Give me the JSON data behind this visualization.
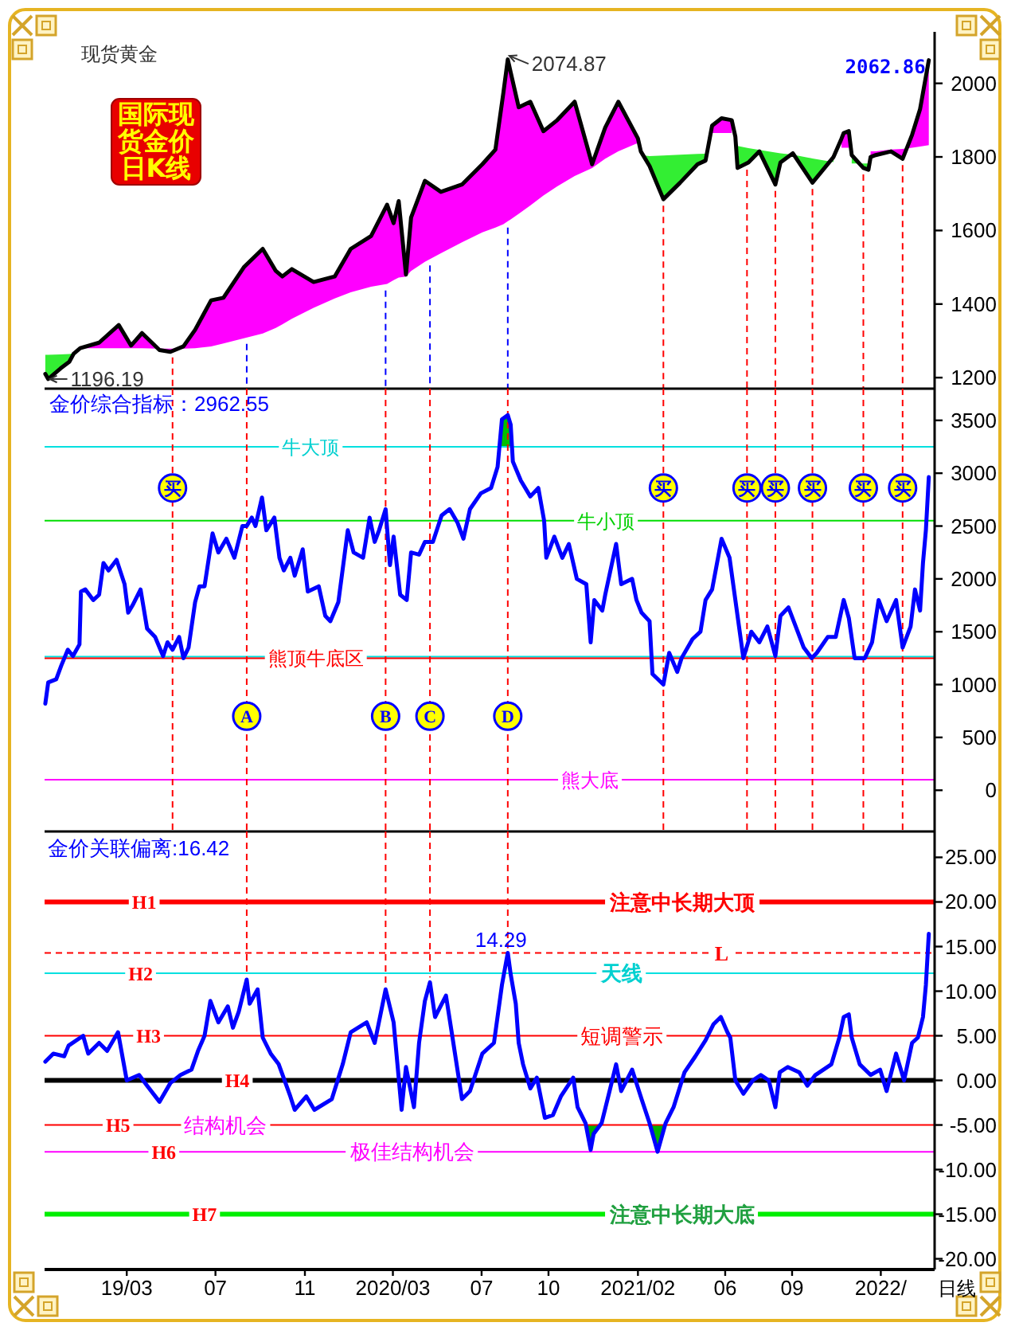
{
  "chart_data": [
    {
      "type": "line",
      "title": "现货黄金",
      "subtitle": "国际现货金价日K线",
      "x": [
        "2018-11-09",
        "2018-11-13",
        "2018-11-30",
        "2018-12-12",
        "2018-12-18",
        "2018-12-27",
        "2019-01-22",
        "2019-02-18",
        "2019-03-07",
        "2019-03-22",
        "2019-04-15",
        "2019-04-30",
        "2019-05-18",
        "2019-06-03",
        "2019-06-25",
        "2019-07-12",
        "2019-08-09",
        "2019-09-04",
        "2019-09-22",
        "2019-10-01",
        "2019-10-14",
        "2019-11-13",
        "2019-12-12",
        "2020-01-03",
        "2020-01-31",
        "2020-02-22",
        "2020-03-02",
        "2020-03-09",
        "2020-03-19",
        "2020-03-26",
        "2020-04-14",
        "2020-05-06",
        "2020-06-04",
        "2020-07-02",
        "2020-07-20",
        "2020-07-31",
        "2020-08-06",
        "2020-08-10",
        "2020-08-21",
        "2020-09-06",
        "2020-09-24",
        "2020-10-13",
        "2020-11-06",
        "2020-11-30",
        "2020-12-18",
        "2021-01-05",
        "2021-02-01",
        "2021-02-05",
        "2021-02-17",
        "2021-03-08",
        "2021-03-31",
        "2021-04-24",
        "2021-05-05",
        "2021-05-14",
        "2021-05-27",
        "2021-06-10",
        "2021-06-15",
        "2021-06-18",
        "2021-07-03",
        "2021-07-18",
        "2021-08-09",
        "2021-08-16",
        "2021-09-02",
        "2021-09-29",
        "2021-10-28",
        "2021-11-08",
        "2021-11-11",
        "2021-11-18",
        "2021-11-22",
        "2021-12-08",
        "2021-12-15",
        "2021-12-18",
        "2021-12-25",
        "2022-01-15",
        "2022-01-31",
        "2022-02-13",
        "2022-02-24",
        "2022-03-08"
      ],
      "series": [
        {
          "type": "line",
          "color": "#ff00ff",
          "values": [
            null,
            null,
            null,
            null,
            null,
            null,
            null,
            null,
            null,
            null,
            null,
            null,
            null,
            null,
            null,
            null,
            null,
            null,
            null,
            null,
            null,
            null,
            null,
            null,
            null,
            null,
            null,
            null,
            null,
            null,
            null,
            null,
            null,
            null,
            null,
            null,
            null,
            null,
            null,
            null,
            null,
            null,
            null,
            null,
            null,
            null,
            null,
            null,
            null,
            null,
            null,
            null,
            null,
            null,
            null,
            null,
            null,
            null,
            null,
            null,
            null,
            null,
            null,
            null,
            null,
            null,
            null,
            null,
            null,
            null,
            null,
            null,
            null,
            null,
            null,
            null,
            null,
            null
          ],
          "lower": [
            null,
            null,
            null,
            null,
            1266,
            1280,
            1280,
            1280,
            1280,
            1280,
            1279,
            1279,
            1279,
            1280,
            1285,
            1293,
            1307,
            1320,
            1335,
            1345,
            1360,
            1390,
            1415,
            1432,
            1447,
            1455,
            1465,
            1472,
            1475,
            1490,
            1515,
            1538,
            1568,
            1595,
            1608,
            1617,
            1625,
            1630,
            1645,
            1668,
            1695,
            1720,
            1748,
            1770,
            1795,
            1815,
            1838,
            null,
            null,
            null,
            null,
            null,
            null,
            1865,
            1865,
            1865,
            null,
            null,
            null,
            null,
            null,
            null,
            null,
            null,
            null,
            1825,
            1825,
            1825,
            null,
            null,
            null,
            1815,
            1815,
            1820,
            1822,
            1825,
            1828,
            1832
          ],
          "upper": [
            null,
            null,
            null,
            null,
            1265,
            1280,
            1295,
            1343,
            1287,
            1321,
            1275,
            1270,
            1285,
            1330,
            1410,
            1417,
            1500,
            1550,
            1490,
            1475,
            1495,
            1460,
            1475,
            1550,
            1585,
            1670,
            1620,
            1680,
            1480,
            1635,
            1735,
            1705,
            1725,
            1780,
            1820,
            1975,
            2065,
            2030,
            1935,
            1950,
            1870,
            1900,
            1950,
            1780,
            1880,
            1950,
            1850,
            null,
            null,
            null,
            null,
            null,
            null,
            1885,
            1905,
            1900,
            null,
            null,
            null,
            null,
            null,
            null,
            null,
            null,
            null,
            1850,
            1865,
            1870,
            null,
            null,
            null,
            1800,
            1805,
            1815,
            1795,
            1860,
            1930,
            2062.86
          ]
        },
        {
          "type": "line",
          "color": "#33ee33",
          "values": [
            null,
            null,
            null,
            null,
            null,
            null,
            null,
            null,
            null,
            null,
            null,
            null,
            null,
            null,
            null,
            null,
            null,
            null,
            null,
            null,
            null,
            null,
            null,
            null,
            null,
            null,
            null,
            null,
            null,
            null,
            null,
            null,
            null,
            null,
            null,
            null,
            null,
            null,
            null,
            null,
            null,
            null,
            null,
            null,
            null,
            null,
            null,
            null,
            null,
            null,
            null,
            null,
            null,
            null,
            null,
            null,
            null,
            null,
            null,
            null,
            null,
            null,
            null,
            null,
            null,
            null,
            null,
            null,
            null,
            null,
            null,
            null,
            null,
            null,
            null,
            null,
            null,
            null
          ],
          "lower": [
            1210,
            1196.19,
            1225,
            1243,
            1265,
            null,
            null,
            null,
            null,
            null,
            null,
            null,
            null,
            null,
            null,
            null,
            null,
            null,
            null,
            null,
            null,
            null,
            null,
            null,
            null,
            null,
            null,
            null,
            null,
            null,
            null,
            null,
            null,
            null,
            null,
            null,
            null,
            null,
            null,
            null,
            null,
            null,
            null,
            null,
            null,
            null,
            null,
            1815,
            1775,
            1685,
            1730,
            1780,
            1790,
            null,
            null,
            null,
            1855,
            1770,
            1785,
            1815,
            1725,
            1785,
            1810,
            1730,
            1800,
            null,
            null,
            null,
            1805,
            1770,
            1765,
            null,
            null,
            null,
            null,
            null,
            null,
            null
          ],
          "upper": [
            1262,
            1262,
            1263,
            1264,
            1266,
            null,
            null,
            null,
            null,
            null,
            null,
            null,
            null,
            null,
            null,
            null,
            null,
            null,
            null,
            null,
            null,
            null,
            null,
            null,
            null,
            null,
            null,
            null,
            null,
            null,
            null,
            null,
            null,
            null,
            null,
            null,
            null,
            null,
            null,
            null,
            null,
            null,
            null,
            null,
            null,
            null,
            null,
            1805,
            1802,
            1804,
            1806,
            1808,
            1809,
            null,
            null,
            null,
            1832,
            1830,
            1824,
            1819,
            1812,
            1810,
            1806,
            1796,
            1786,
            null,
            null,
            null,
            1782,
            1782,
            1782,
            null,
            null,
            null,
            null,
            null,
            null,
            null
          ]
        },
        {
          "type": "line",
          "color": "#000000",
          "values": [
            1210,
            1196.19,
            1225,
            1243,
            1265,
            1280,
            1295,
            1343,
            1287,
            1321,
            1275,
            1270,
            1285,
            1330,
            1410,
            1417,
            1500,
            1550,
            1490,
            1475,
            1495,
            1460,
            1475,
            1550,
            1585,
            1670,
            1620,
            1680,
            1480,
            1635,
            1735,
            1705,
            1725,
            1780,
            1820,
            1975,
            2065,
            2030,
            1935,
            1950,
            1870,
            1900,
            1950,
            1780,
            1880,
            1950,
            1850,
            1815,
            1775,
            1685,
            1730,
            1780,
            1790,
            1885,
            1905,
            1900,
            1855,
            1770,
            1785,
            1815,
            1725,
            1785,
            1810,
            1730,
            1800,
            1850,
            1865,
            1870,
            1805,
            1770,
            1765,
            1800,
            1805,
            1815,
            1795,
            1860,
            1930,
            2062.86
          ]
        }
      ],
      "xlim": [
        "2018-11-08",
        "2022-03-16"
      ],
      "ylim": [
        1170,
        2140
      ],
      "yticks": [
        1200,
        1400,
        1600,
        1800,
        2000
      ],
      "tick_labels": "y",
      "ref_lines": [
        {
          "axis": "x",
          "value": "2019-05-03",
          "color": "#ff0000",
          "line_style": "dashed"
        },
        {
          "axis": "x",
          "value": "2019-08-13",
          "color": "#0000ff",
          "line_style": "dashed"
        },
        {
          "axis": "x",
          "value": "2020-02-20",
          "color": "#0000ff",
          "line_style": "dashed"
        },
        {
          "axis": "x",
          "value": "2020-04-21",
          "color": "#0000ff",
          "line_style": "dashed"
        },
        {
          "axis": "x",
          "value": "2020-08-06",
          "color": "#0000ff",
          "line_style": "dashed"
        },
        {
          "axis": "x",
          "value": "2021-03-08",
          "color": "#ff0000",
          "line_style": "dashed"
        },
        {
          "axis": "x",
          "value": "2021-07-01",
          "color": "#ff0000",
          "line_style": "dashed"
        },
        {
          "axis": "x",
          "value": "2021-08-09",
          "color": "#ff0000",
          "line_style": "dashed"
        },
        {
          "axis": "x",
          "value": "2021-09-29",
          "color": "#ff0000",
          "line_style": "dashed"
        },
        {
          "axis": "x",
          "value": "2021-12-08",
          "color": "#ff0000",
          "line_style": "dashed"
        },
        {
          "axis": "x",
          "value": "2022-01-31",
          "color": "#ff0000",
          "line_style": "dashed"
        }
      ],
      "annotations": [
        {
          "text": "2074.87",
          "x": "2020-08-06",
          "y": 2074.87
        },
        {
          "text": "1196.19",
          "x": "2018-11-13",
          "y": 1196.19
        },
        {
          "text": "2062.86",
          "x": "2022-03-08",
          "y": 2062.86
        }
      ]
    },
    {
      "type": "line",
      "title": "金价综合指标：2962.55",
      "x": [
        "2018-11-09",
        "2018-11-13",
        "2018-11-24",
        "2018-12-01",
        "2018-12-10",
        "2018-12-17",
        "2018-12-26",
        "2018-12-28",
        "2019-01-03",
        "2019-01-14",
        "2019-01-22",
        "2019-01-28",
        "2019-02-04",
        "2019-02-15",
        "2019-02-26",
        "2019-03-03",
        "2019-03-09",
        "2019-03-20",
        "2019-03-29",
        "2019-04-09",
        "2019-04-20",
        "2019-04-26",
        "2019-05-03",
        "2019-05-12",
        "2019-05-18",
        "2019-05-25",
        "2019-06-03",
        "2019-06-09",
        "2019-06-16",
        "2019-06-27",
        "2019-07-05",
        "2019-07-16",
        "2019-07-27",
        "2019-08-07",
        "2019-08-13",
        "2019-08-20",
        "2019-08-25",
        "2019-09-03",
        "2019-09-09",
        "2019-09-20",
        "2019-09-27",
        "2019-10-03",
        "2019-10-12",
        "2019-10-18",
        "2019-10-29",
        "2019-11-05",
        "2019-11-20",
        "2019-11-29",
        "2019-12-06",
        "2019-12-17",
        "2019-12-30",
        "2020-01-07",
        "2020-01-20",
        "2020-01-29",
        "2020-02-05",
        "2020-02-11",
        "2020-02-20",
        "2020-02-26",
        "2020-03-02",
        "2020-03-11",
        "2020-03-20",
        "2020-03-26",
        "2020-04-06",
        "2020-04-14",
        "2020-04-25",
        "2020-05-07",
        "2020-05-18",
        "2020-05-29",
        "2020-06-06",
        "2020-06-15",
        "2020-06-30",
        "2020-07-14",
        "2020-07-23",
        "2020-07-29",
        "2020-08-06",
        "2020-08-10",
        "2020-08-13",
        "2020-08-24",
        "2020-09-06",
        "2020-09-17",
        "2020-09-25",
        "2020-09-28",
        "2020-10-09",
        "2020-10-20",
        "2020-10-29",
        "2020-11-09",
        "2020-11-22",
        "2020-11-28",
        "2020-12-03",
        "2020-12-14",
        "2020-12-18",
        "2021-01-02",
        "2021-01-09",
        "2021-01-24",
        "2021-01-30",
        "2021-02-06",
        "2021-02-17",
        "2021-02-21",
        "2021-03-08",
        "2021-03-16",
        "2021-03-27",
        "2021-04-02",
        "2021-04-17",
        "2021-04-28",
        "2021-05-05",
        "2021-05-14",
        "2021-05-27",
        "2021-06-07",
        "2021-06-18",
        "2021-06-26",
        "2021-07-07",
        "2021-07-18",
        "2021-07-29",
        "2021-08-09",
        "2021-08-16",
        "2021-08-27",
        "2021-09-06",
        "2021-09-17",
        "2021-09-28",
        "2021-10-05",
        "2021-10-20",
        "2021-10-31",
        "2021-11-11",
        "2021-11-18",
        "2021-11-26",
        "2021-12-10",
        "2021-12-20",
        "2021-12-29",
        "2022-01-09",
        "2022-01-22",
        "2022-01-31",
        "2022-02-11",
        "2022-02-17",
        "2022-02-24",
        "2022-02-28",
        "2022-03-04",
        "2022-03-08"
      ],
      "series": [
        {
          "type": "line",
          "color": "#00c000",
          "x": [
            "2020-07-26",
            "2020-07-29",
            "2020-08-06",
            "2020-08-10",
            "2020-08-12"
          ],
          "values": [
            null,
            null,
            null,
            null,
            null
          ],
          "lower": [
            3250,
            3250,
            3250,
            3250,
            3250
          ],
          "upper": [
            3250,
            3510,
            3550,
            3460,
            3250
          ]
        },
        {
          "type": "line",
          "color": "#0000ff",
          "values": [
            820,
            1020,
            1050,
            1180,
            1330,
            1270,
            1380,
            1880,
            1900,
            1800,
            1850,
            2150,
            2080,
            2180,
            1950,
            1680,
            1750,
            1900,
            1530,
            1450,
            1270,
            1400,
            1330,
            1450,
            1250,
            1350,
            1780,
            1930,
            1930,
            2430,
            2250,
            2380,
            2200,
            2500,
            2500,
            2580,
            2500,
            2770,
            2460,
            2580,
            2200,
            2080,
            2200,
            2030,
            2280,
            1880,
            1930,
            1650,
            1600,
            1780,
            2460,
            2250,
            2200,
            2580,
            2350,
            2460,
            2660,
            2130,
            2400,
            1850,
            1800,
            2250,
            2230,
            2350,
            2350,
            2600,
            2660,
            2530,
            2380,
            2660,
            2810,
            2860,
            3060,
            3510,
            3550,
            3460,
            3110,
            2930,
            2780,
            2860,
            2550,
            2200,
            2400,
            2200,
            2330,
            2000,
            1950,
            1400,
            1800,
            1700,
            1850,
            2330,
            1950,
            2000,
            1800,
            1680,
            1600,
            1100,
            1000,
            1300,
            1120,
            1250,
            1430,
            1500,
            1800,
            1900,
            2380,
            2200,
            1650,
            1250,
            1500,
            1400,
            1550,
            1270,
            1650,
            1730,
            1550,
            1350,
            1250,
            1300,
            1450,
            1450,
            1800,
            1630,
            1250,
            1250,
            1400,
            1800,
            1600,
            1800,
            1350,
            1550,
            1900,
            1700,
            2150,
            2460,
            2962.55
          ]
        }
      ],
      "xlim": [
        "2018-11-08",
        "2022-03-16"
      ],
      "ylim": [
        -390,
        3800
      ],
      "yticks": [
        0,
        500,
        1000,
        1500,
        2000,
        2500,
        3000,
        3500
      ],
      "tick_labels": "y",
      "ref_lines": [
        {
          "axis": "y",
          "value": 3250,
          "color": "#00e0e0"
        },
        {
          "axis": "y",
          "value": 2550,
          "color": "#00dd00"
        },
        {
          "axis": "y",
          "value": 1265,
          "color": "#00e0e0"
        },
        {
          "axis": "y",
          "value": 1250,
          "color": "#ff0000"
        },
        {
          "axis": "y",
          "value": 100,
          "color": "#ff00ff"
        },
        {
          "axis": "x",
          "value": "2019-05-03",
          "color": "#ff0000",
          "line_style": "dashed"
        },
        {
          "axis": "x",
          "value": "2019-08-13",
          "color": "#ff0000",
          "line_style": "dashed"
        },
        {
          "axis": "x",
          "value": "2020-02-20",
          "color": "#ff0000",
          "line_style": "dashed"
        },
        {
          "axis": "x",
          "value": "2020-04-21",
          "color": "#ff0000",
          "line_style": "dashed"
        },
        {
          "axis": "x",
          "value": "2020-08-06",
          "color": "#ff0000",
          "line_style": "dashed"
        },
        {
          "axis": "x",
          "value": "2021-03-08",
          "color": "#ff0000",
          "line_style": "dashed"
        },
        {
          "axis": "x",
          "value": "2021-07-01",
          "color": "#ff0000",
          "line_style": "dashed"
        },
        {
          "axis": "x",
          "value": "2021-08-09",
          "color": "#ff0000",
          "line_style": "dashed"
        },
        {
          "axis": "x",
          "value": "2021-09-29",
          "color": "#ff0000",
          "line_style": "dashed"
        },
        {
          "axis": "x",
          "value": "2021-12-08",
          "color": "#ff0000",
          "line_style": "dashed"
        },
        {
          "axis": "x",
          "value": "2022-01-31",
          "color": "#ff0000",
          "line_style": "dashed"
        }
      ],
      "annotations": [
        {
          "text": "牛大顶",
          "x": "2019-11-09",
          "y": 3250
        },
        {
          "text": "牛小顶",
          "x": "2020-12-19",
          "y": 2550
        },
        {
          "text": "熊顶牛底区",
          "x": "2019-11-16",
          "y": 1250
        },
        {
          "text": "熊大底",
          "x": "2020-11-27",
          "y": 100
        },
        {
          "text": "买",
          "x": "2019-05-03",
          "y": 2860
        },
        {
          "text": "买",
          "x": "2021-03-08",
          "y": 2860
        },
        {
          "text": "买",
          "x": "2021-07-01",
          "y": 2860
        },
        {
          "text": "买",
          "x": "2021-08-09",
          "y": 2860
        },
        {
          "text": "买",
          "x": "2021-09-29",
          "y": 2860
        },
        {
          "text": "买",
          "x": "2021-12-08",
          "y": 2860
        },
        {
          "text": "买",
          "x": "2022-01-31",
          "y": 2860
        },
        {
          "text": "A",
          "x": "2019-08-13",
          "y": 700
        },
        {
          "text": "B",
          "x": "2020-02-20",
          "y": 700
        },
        {
          "text": "C",
          "x": "2020-04-21",
          "y": 700
        },
        {
          "text": "D",
          "x": "2020-08-06",
          "y": 700
        }
      ]
    },
    {
      "type": "line",
      "title": "金价关联偏离:16.42",
      "xlabel": "日线",
      "x": [
        "2018-11-09",
        "2018-11-20",
        "2018-12-05",
        "2018-12-11",
        "2018-12-31",
        "2019-01-07",
        "2019-01-22",
        "2019-02-02",
        "2019-02-17",
        "2019-03-01",
        "2019-03-18",
        "2019-03-29",
        "2019-04-15",
        "2019-04-30",
        "2019-05-14",
        "2019-05-29",
        "2019-06-07",
        "2019-06-16",
        "2019-06-24",
        "2019-07-05",
        "2019-07-18",
        "2019-07-25",
        "2019-08-02",
        "2019-08-13",
        "2019-08-17",
        "2019-08-28",
        "2019-09-04",
        "2019-09-15",
        "2019-09-26",
        "2019-10-12",
        "2019-10-18",
        "2019-11-03",
        "2019-11-14",
        "2019-12-08",
        "2019-12-23",
        "2020-01-03",
        "2020-01-25",
        "2020-02-05",
        "2020-02-20",
        "2020-03-02",
        "2020-03-13",
        "2020-03-19",
        "2020-03-30",
        "2020-04-06",
        "2020-04-14",
        "2020-04-21",
        "2020-04-28",
        "2020-05-13",
        "2020-05-22",
        "2020-06-04",
        "2020-06-15",
        "2020-07-02",
        "2020-07-18",
        "2020-07-29",
        "2020-08-06",
        "2020-08-10",
        "2020-08-17",
        "2020-08-21",
        "2020-08-27",
        "2020-09-06",
        "2020-09-15",
        "2020-09-26",
        "2020-10-07",
        "2020-10-18",
        "2020-11-04",
        "2020-11-10",
        "2020-11-21",
        "2020-11-28",
        "2020-12-02",
        "2020-12-13",
        "2020-12-24",
        "2021-01-02",
        "2021-01-09",
        "2021-01-24",
        "2021-02-06",
        "2021-02-17",
        "2021-02-28",
        "2021-03-11",
        "2021-03-22",
        "2021-04-06",
        "2021-04-21",
        "2021-05-05",
        "2021-05-16",
        "2021-05-26",
        "2021-06-04",
        "2021-06-08",
        "2021-06-15",
        "2021-06-26",
        "2021-07-09",
        "2021-07-20",
        "2021-07-31",
        "2021-08-09",
        "2021-08-15",
        "2021-08-26",
        "2021-09-11",
        "2021-09-22",
        "2021-10-03",
        "2021-10-14",
        "2021-10-25",
        "2021-11-05",
        "2021-11-11",
        "2021-11-18",
        "2021-11-22",
        "2021-12-03",
        "2021-12-18",
        "2021-12-31",
        "2022-01-09",
        "2022-01-22",
        "2022-02-02",
        "2022-02-13",
        "2022-02-21",
        "2022-02-28",
        "2022-03-04",
        "2022-03-08"
      ],
      "series": [
        {
          "type": "line",
          "color": "#00b000",
          "x": [
            "2020-11-20",
            "2020-11-28",
            "2020-12-02",
            "2020-12-11",
            "2021-01-01",
            "2021-02-15",
            "2021-02-28",
            "2021-03-10"
          ],
          "values": [
            null,
            null,
            null,
            null,
            null,
            null,
            null,
            null
          ],
          "lower": [
            -5,
            -7.8,
            -6.0,
            -5,
            null,
            -5,
            -8.0,
            -5
          ],
          "upper": [
            -5,
            -5,
            -5,
            -5,
            null,
            -5,
            -5,
            -5
          ]
        },
        {
          "type": "line",
          "color": "#0000ff",
          "values": [
            2.1,
            3.0,
            2.7,
            3.9,
            5.0,
            3.0,
            4.2,
            3.3,
            5.4,
            0,
            0.6,
            -0.6,
            -2.4,
            -0.3,
            0.6,
            1.2,
            3.3,
            5.0,
            8.9,
            6.5,
            8.3,
            5.9,
            7.7,
            11.3,
            8.6,
            10.2,
            4.8,
            3.0,
            1.8,
            -1.8,
            -3.3,
            -1.8,
            -3.3,
            -2.1,
            1.8,
            5.4,
            6.5,
            4.2,
            10.2,
            6.5,
            -3.3,
            1.5,
            -3.0,
            4.2,
            8.9,
            11.0,
            7.1,
            9.5,
            4.8,
            -2.1,
            -1.2,
            3.0,
            4.2,
            10.7,
            14.29,
            11.9,
            8.6,
            4.2,
            1.8,
            -0.9,
            0.3,
            -4.2,
            -3.9,
            -1.8,
            0.3,
            -3.0,
            -4.8,
            -7.8,
            -6.0,
            -4.8,
            -1.2,
            1.8,
            -1.2,
            1.2,
            -2.1,
            -4.8,
            -8.0,
            -4.8,
            -3.0,
            0.9,
            2.7,
            4.5,
            6.3,
            7.1,
            5.4,
            4.8,
            0,
            -1.5,
            0,
            0.6,
            0,
            -3.0,
            0.9,
            1.5,
            0.9,
            -0.6,
            0.6,
            1.2,
            1.8,
            4.8,
            7.1,
            7.4,
            4.8,
            1.8,
            0.6,
            1.2,
            -1.2,
            3.0,
            0,
            4.2,
            4.8,
            7.1,
            10.7,
            16.42
          ]
        }
      ],
      "xlim": [
        "2018-11-08",
        "2022-03-16"
      ],
      "ylim": [
        -21.2,
        27.9
      ],
      "xticks": [
        {
          "value": "2019-03-01",
          "label": "19/03"
        },
        {
          "value": "2019-07-01",
          "label": "07"
        },
        {
          "value": "2019-11-01",
          "label": "11"
        },
        {
          "value": "2020-03-01",
          "label": "2020/03"
        },
        {
          "value": "2020-07-01",
          "label": "07"
        },
        {
          "value": "2020-10-01",
          "label": "10"
        },
        {
          "value": "2021-02-01",
          "label": "2021/02"
        },
        {
          "value": "2021-06-01",
          "label": "06"
        },
        {
          "value": "2021-09-01",
          "label": "09"
        },
        {
          "value": "2022-01-01",
          "label": "2022/"
        }
      ],
      "yticks": [
        {
          "value": 25,
          "label": "25.00"
        },
        {
          "value": 20,
          "label": "20.00"
        },
        {
          "value": 15,
          "label": "15.00"
        },
        {
          "value": 10,
          "label": "10.00"
        },
        {
          "value": 5,
          "label": "5.00"
        },
        {
          "value": 0,
          "label": "0.00"
        },
        {
          "value": -5,
          "label": "-5.00"
        },
        {
          "value": -10,
          "label": "-10.00"
        },
        {
          "value": -15,
          "label": "-15.00"
        },
        {
          "value": -20,
          "label": "-20.00"
        }
      ],
      "ref_lines": [
        {
          "axis": "y",
          "value": 20,
          "color": "#ff0000"
        },
        {
          "axis": "y",
          "value": 14.29,
          "color": "#ff0000",
          "line_style": "dashed"
        },
        {
          "axis": "y",
          "value": 12,
          "color": "#00e0e0"
        },
        {
          "axis": "y",
          "value": 5,
          "color": "#ff0000"
        },
        {
          "axis": "y",
          "value": 0,
          "color": "#000000"
        },
        {
          "axis": "y",
          "value": -5,
          "color": "#ff0000"
        },
        {
          "axis": "y",
          "value": -8,
          "color": "#ff00ff"
        },
        {
          "axis": "y",
          "value": -15,
          "color": "#00ee00"
        },
        {
          "axis": "x",
          "value": "2019-08-13",
          "color": "#ff0000",
          "line_style": "dashed"
        },
        {
          "axis": "x",
          "value": "2020-02-20",
          "color": "#ff0000",
          "line_style": "dashed"
        },
        {
          "axis": "x",
          "value": "2020-04-21",
          "color": "#ff0000",
          "line_style": "dashed"
        },
        {
          "axis": "x",
          "value": "2020-08-06",
          "color": "#ff0000",
          "line_style": "dashed"
        }
      ],
      "annotations": [
        {
          "text": "H1",
          "x": "2019-03-25",
          "y": 20
        },
        {
          "text": "注意中长期大顶",
          "x": "2021-04-03",
          "y": 20
        },
        {
          "text": "14.29",
          "x": "2020-08-06",
          "y": 14.29
        },
        {
          "text": "L",
          "x": "2021-05-27",
          "y": 14.29
        },
        {
          "text": "H2",
          "x": "2019-03-20",
          "y": 12
        },
        {
          "text": "天线",
          "x": "2021-01-10",
          "y": 12
        },
        {
          "text": "H3",
          "x": "2019-03-31",
          "y": 5
        },
        {
          "text": "短调警示",
          "x": "2021-01-10",
          "y": 5
        },
        {
          "text": "H4",
          "x": "2019-07-31",
          "y": 0
        },
        {
          "text": "H5",
          "x": "2019-02-17",
          "y": -5
        },
        {
          "text": "结构机会",
          "x": "2019-07-15",
          "y": -5
        },
        {
          "text": "H6",
          "x": "2019-04-21",
          "y": -8
        },
        {
          "text": "极佳结构机会",
          "x": "2020-03-28",
          "y": -8
        },
        {
          "text": "H7",
          "x": "2019-06-16",
          "y": -15
        },
        {
          "text": "注意中长期大底",
          "x": "2021-04-03",
          "y": -15
        }
      ]
    }
  ]
}
